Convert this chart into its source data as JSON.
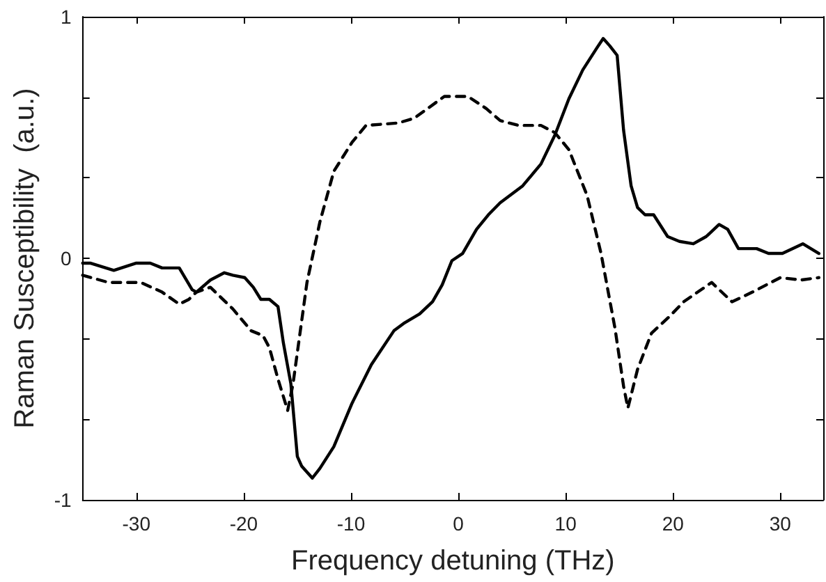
{
  "chart_data": {
    "type": "line",
    "xlabel": "Frequency detuning (THz)",
    "ylabel": "Raman Susceptibility  (a.u.)",
    "xlim": [
      -35,
      34
    ],
    "xticks": [
      -30,
      -20,
      -10,
      0,
      10,
      20,
      30
    ],
    "ylim": [
      -1,
      1
    ],
    "yticks": [
      -1,
      {
        "value": -0.667,
        "label": null
      },
      {
        "value": -0.333,
        "label": null
      },
      0,
      {
        "value": 0.333,
        "label": null
      },
      {
        "value": 0.667,
        "label": null
      },
      1
    ],
    "grid": false,
    "marker": "none",
    "series": [
      {
        "color": "#000000",
        "line_style": "solid",
        "x": [
          -35,
          -34.3,
          -32.1,
          -30,
          -28.7,
          -27.6,
          -26,
          -24.8,
          -24.4,
          -23.1,
          -21.8,
          -21,
          -19.9,
          -19.1,
          -18.4,
          -17.6,
          -16.8,
          -16.3,
          -15.6,
          -15,
          -14.6,
          -13.6,
          -12.9,
          -11.6,
          -9.9,
          -8.1,
          -6,
          -5.1,
          -3.6,
          -2.4,
          -1.5,
          -0.6,
          0.4,
          1.7,
          2.8,
          3.9,
          6,
          7.7,
          9,
          10.3,
          11.6,
          12.9,
          13.5,
          14.1,
          14.8,
          15.4,
          16.1,
          16.7,
          17.4,
          18.2,
          19.5,
          20.6,
          21.9,
          23.1,
          24.3,
          25.1,
          26.1,
          27.8,
          28.9,
          30.2,
          32.1,
          33.6
        ],
        "values": [
          -0.02,
          -0.02,
          -0.05,
          -0.02,
          -0.02,
          -0.04,
          -0.04,
          -0.13,
          -0.14,
          -0.09,
          -0.06,
          -0.07,
          -0.08,
          -0.12,
          -0.17,
          -0.17,
          -0.2,
          -0.35,
          -0.52,
          -0.82,
          -0.86,
          -0.91,
          -0.87,
          -0.78,
          -0.6,
          -0.44,
          -0.3,
          -0.27,
          -0.23,
          -0.18,
          -0.11,
          -0.01,
          0.02,
          0.12,
          0.18,
          0.23,
          0.3,
          0.39,
          0.51,
          0.66,
          0.78,
          0.87,
          0.91,
          0.88,
          0.84,
          0.53,
          0.3,
          0.21,
          0.18,
          0.18,
          0.09,
          0.07,
          0.06,
          0.09,
          0.14,
          0.12,
          0.04,
          0.04,
          0.02,
          0.02,
          0.06,
          0.02
        ]
      },
      {
        "color": "#000000",
        "line_style": "dashed",
        "x": [
          -35,
          -32.6,
          -29.6,
          -27.6,
          -26,
          -25.1,
          -24.4,
          -23.1,
          -21,
          -19.3,
          -18.2,
          -17.6,
          -16.8,
          -15.9,
          -15.4,
          -14.1,
          -12.9,
          -11.6,
          -9.9,
          -8.6,
          -5.6,
          -4.1,
          -1.3,
          0.9,
          2.6,
          3.9,
          5.6,
          7.7,
          9,
          10.3,
          12,
          13.3,
          14.6,
          15.4,
          15.8,
          16.7,
          18,
          19.7,
          21,
          23.6,
          25.5,
          27.4,
          30,
          31.9,
          33.6
        ],
        "values": [
          -0.07,
          -0.1,
          -0.1,
          -0.14,
          -0.19,
          -0.17,
          -0.14,
          -0.12,
          -0.21,
          -0.3,
          -0.32,
          -0.37,
          -0.5,
          -0.63,
          -0.52,
          -0.1,
          0.15,
          0.36,
          0.48,
          0.55,
          0.56,
          0.58,
          0.67,
          0.67,
          0.62,
          0.57,
          0.55,
          0.55,
          0.52,
          0.45,
          0.26,
          0.02,
          -0.29,
          -0.53,
          -0.62,
          -0.46,
          -0.31,
          -0.24,
          -0.18,
          -0.1,
          -0.18,
          -0.14,
          -0.08,
          -0.09,
          -0.08
        ]
      }
    ]
  }
}
